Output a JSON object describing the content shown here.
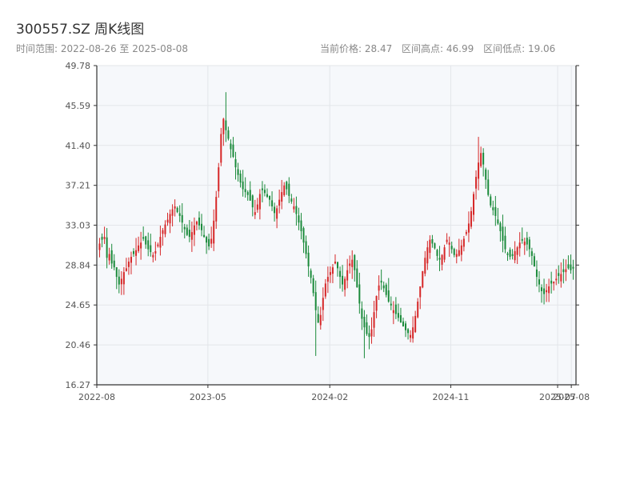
{
  "header": {
    "title": "300557.SZ 周K线图",
    "subtitle": "时间范围: 2022-08-26 至 2025-08-08",
    "current_price": "当前价格: 28.47",
    "range_high": "区间高点: 46.99",
    "range_low": "区间低点: 19.06"
  },
  "colors": {
    "up": "#d62728",
    "down": "#1a8a3a",
    "plot_bg": "#f6f8fb",
    "grid": "#e3e6ea",
    "axis": "#333333"
  },
  "chart_data": {
    "type": "candlestick",
    "title": "300557.SZ 周K线图",
    "xlabel": "",
    "ylabel": "",
    "ylim": [
      16.27,
      49.78
    ],
    "grid": true,
    "legend": "none",
    "y_ticks": [
      "49.78",
      "45.59",
      "41.40",
      "37.21",
      "33.03",
      "28.84",
      "24.65",
      "20.46",
      "16.27"
    ],
    "x_ticks": [
      "2022-08",
      "2023-05",
      "2024-02",
      "2024-11",
      "2025-07",
      "2025-08"
    ],
    "closes": [
      31.1,
      31.5,
      31.8,
      29.6,
      30.0,
      29.0,
      28.6,
      27.6,
      26.8,
      27.4,
      28.1,
      28.5,
      29.2,
      29.7,
      30.0,
      30.4,
      30.9,
      31.2,
      31.6,
      31.0,
      30.5,
      30.2,
      29.9,
      30.3,
      31.0,
      31.8,
      32.5,
      33.1,
      33.6,
      34.2,
      34.7,
      35.0,
      34.4,
      34.0,
      33.3,
      32.6,
      32.0,
      31.8,
      32.3,
      33.0,
      33.4,
      33.0,
      32.5,
      31.8,
      31.2,
      30.8,
      31.6,
      33.5,
      36.0,
      39.1,
      42.6,
      44.2,
      43.0,
      42.1,
      41.0,
      40.2,
      39.1,
      38.3,
      37.5,
      36.8,
      36.5,
      36.2,
      35.6,
      34.9,
      34.4,
      35.2,
      36.3,
      36.7,
      36.4,
      36.0,
      35.7,
      35.0,
      34.3,
      34.8,
      35.7,
      36.5,
      37.2,
      36.8,
      36.1,
      35.5,
      35.0,
      34.2,
      33.3,
      32.4,
      31.2,
      30.0,
      28.7,
      27.5,
      25.9,
      24.1,
      22.8,
      23.6,
      25.4,
      26.9,
      27.6,
      28.1,
      28.6,
      29.2,
      28.5,
      27.6,
      26.8,
      27.4,
      28.3,
      29.0,
      29.4,
      28.3,
      26.5,
      24.8,
      23.2,
      22.3,
      21.6,
      21.3,
      22.1,
      23.9,
      25.6,
      26.7,
      27.0,
      26.4,
      25.7,
      25.0,
      24.6,
      24.1,
      23.7,
      23.3,
      22.8,
      22.4,
      22.0,
      21.7,
      21.5,
      22.3,
      23.5,
      25.0,
      26.6,
      28.2,
      29.6,
      30.7,
      31.5,
      31.1,
      30.6,
      29.8,
      29.4,
      29.9,
      30.7,
      31.5,
      31.2,
      30.5,
      29.9,
      30.0,
      30.4,
      30.9,
      31.6,
      32.3,
      33.2,
      34.5,
      36.3,
      38.1,
      39.6,
      40.6,
      39.4,
      37.8,
      36.2,
      35.1,
      34.6,
      34.0,
      33.2,
      32.4,
      31.4,
      30.5,
      29.9,
      29.7,
      29.8,
      30.3,
      30.7,
      31.2,
      31.4,
      31.3,
      31.0,
      30.5,
      29.8,
      28.7,
      27.6,
      26.8,
      26.1,
      25.8,
      26.2,
      26.6,
      26.9,
      27.1,
      27.4,
      27.7,
      27.9,
      28.1,
      28.4,
      28.5,
      28.3,
      28.47
    ],
    "ohlc_summary": {
      "last_close": 28.47,
      "period_high": 46.99,
      "period_low": 19.06
    }
  }
}
